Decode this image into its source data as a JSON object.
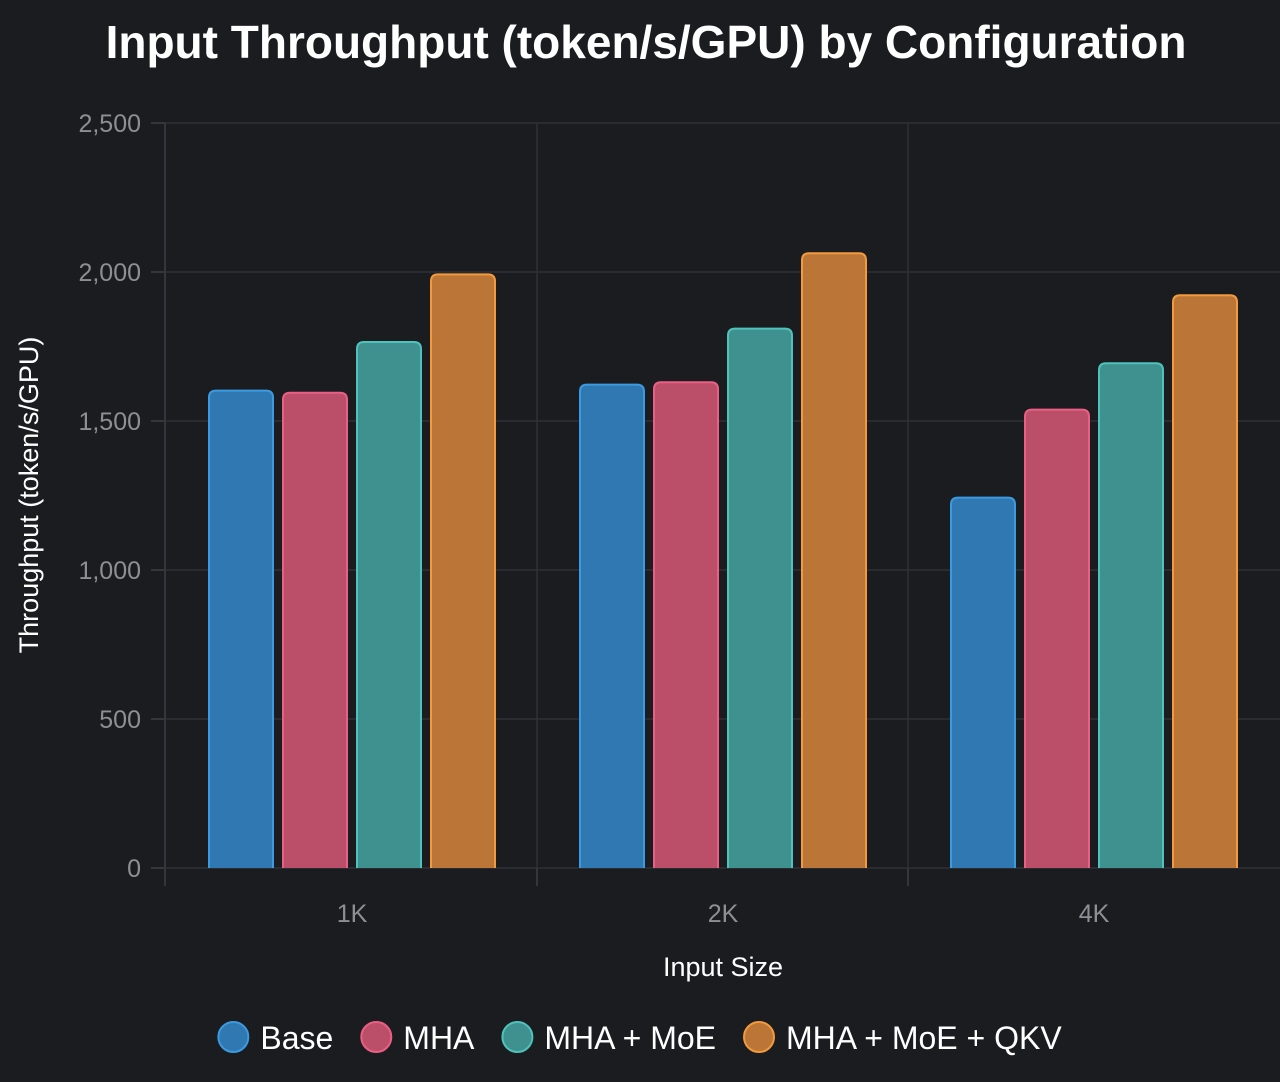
{
  "chart_data": {
    "type": "bar",
    "title": "Input Throughput (token/s/GPU) by Configuration",
    "xlabel": "Input Size",
    "ylabel": "Throughput (token/s/GPU)",
    "categories": [
      "1K",
      "2K",
      "4K"
    ],
    "ylim": [
      0,
      2500
    ],
    "yticks": [
      0,
      500,
      1000,
      1500,
      2000,
      2500
    ],
    "ytick_labels": [
      "0",
      "500",
      "1,000",
      "1,500",
      "2,000",
      "2,500"
    ],
    "grid": true,
    "legend_position": "bottom",
    "series": [
      {
        "name": "Base",
        "values": [
          1602,
          1622,
          1243
        ],
        "fill": "#2f78b2",
        "stroke": "#3c9ae0"
      },
      {
        "name": "MHA",
        "values": [
          1595,
          1630,
          1538
        ],
        "fill": "#bb4e68",
        "stroke": "#ec5f85"
      },
      {
        "name": "MHA + MoE",
        "values": [
          1765,
          1810,
          1694
        ],
        "fill": "#3f918f",
        "stroke": "#4fc2bb"
      },
      {
        "name": "MHA + MoE + QKV",
        "values": [
          1992,
          2063,
          1922
        ],
        "fill": "#bb7637",
        "stroke": "#f29a3d"
      }
    ]
  }
}
